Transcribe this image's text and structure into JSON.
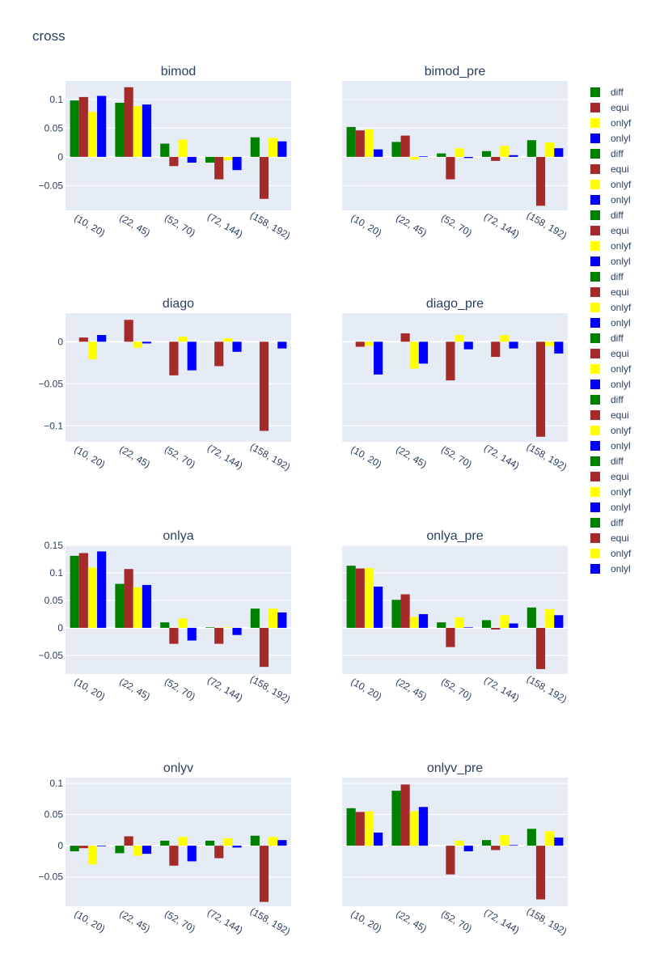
{
  "figure": {
    "title": "cross"
  },
  "colors": {
    "diff": "#008000",
    "equi": "#a52a2a",
    "onlyf": "#ffff00",
    "onlyl": "#0000ff",
    "plot_bg": "#e5ecf6",
    "text": "#2a3f5f"
  },
  "legend": {
    "entries": [
      {
        "name": "diff",
        "color": "#008000"
      },
      {
        "name": "equi",
        "color": "#a52a2a"
      },
      {
        "name": "onlyf",
        "color": "#ffff00"
      },
      {
        "name": "onlyl",
        "color": "#0000ff"
      },
      {
        "name": "diff",
        "color": "#008000"
      },
      {
        "name": "equi",
        "color": "#a52a2a"
      },
      {
        "name": "onlyf",
        "color": "#ffff00"
      },
      {
        "name": "onlyl",
        "color": "#0000ff"
      },
      {
        "name": "diff",
        "color": "#008000"
      },
      {
        "name": "equi",
        "color": "#a52a2a"
      },
      {
        "name": "onlyf",
        "color": "#ffff00"
      },
      {
        "name": "onlyl",
        "color": "#0000ff"
      },
      {
        "name": "diff",
        "color": "#008000"
      },
      {
        "name": "equi",
        "color": "#a52a2a"
      },
      {
        "name": "onlyf",
        "color": "#ffff00"
      },
      {
        "name": "onlyl",
        "color": "#0000ff"
      },
      {
        "name": "diff",
        "color": "#008000"
      },
      {
        "name": "equi",
        "color": "#a52a2a"
      },
      {
        "name": "onlyf",
        "color": "#ffff00"
      },
      {
        "name": "onlyl",
        "color": "#0000ff"
      },
      {
        "name": "diff",
        "color": "#008000"
      },
      {
        "name": "equi",
        "color": "#a52a2a"
      },
      {
        "name": "onlyf",
        "color": "#ffff00"
      },
      {
        "name": "onlyl",
        "color": "#0000ff"
      },
      {
        "name": "diff",
        "color": "#008000"
      },
      {
        "name": "equi",
        "color": "#a52a2a"
      },
      {
        "name": "onlyf",
        "color": "#ffff00"
      },
      {
        "name": "onlyl",
        "color": "#0000ff"
      },
      {
        "name": "diff",
        "color": "#008000"
      },
      {
        "name": "equi",
        "color": "#a52a2a"
      },
      {
        "name": "onlyf",
        "color": "#ffff00"
      },
      {
        "name": "onlyl",
        "color": "#0000ff"
      }
    ],
    "placement": "right"
  },
  "chart_data": [
    {
      "type": "bar",
      "title": "bimod",
      "categories": [
        "(10, 20)",
        "(22, 45)",
        "(52, 70)",
        "(72, 144)",
        "(158, 192)"
      ],
      "yticks": [
        -0.05,
        0,
        0.05,
        0.1
      ],
      "yticklabels": [
        "−0.05",
        "0",
        "0.05",
        "0.1"
      ],
      "ylim": [
        -0.093,
        0.132
      ],
      "series": [
        {
          "name": "diff",
          "values": [
            0.098,
            0.094,
            0.023,
            -0.01,
            0.034
          ]
        },
        {
          "name": "equi",
          "values": [
            0.104,
            0.121,
            -0.016,
            -0.039,
            -0.073
          ]
        },
        {
          "name": "onlyf",
          "values": [
            0.078,
            0.088,
            0.03,
            -0.006,
            0.033
          ]
        },
        {
          "name": "onlyl",
          "values": [
            0.106,
            0.091,
            -0.01,
            -0.023,
            0.027
          ]
        }
      ]
    },
    {
      "type": "bar",
      "title": "bimod_pre",
      "categories": [
        "(10, 20)",
        "(22, 45)",
        "(52, 70)",
        "(72, 144)",
        "(158, 192)"
      ],
      "yticks": [
        -0.05,
        0,
        0.05,
        0.1
      ],
      "yticklabels": [
        "",
        "",
        "",
        ""
      ],
      "ylim": [
        -0.093,
        0.132
      ],
      "series": [
        {
          "name": "diff",
          "values": [
            0.052,
            0.026,
            0.006,
            0.01,
            0.029
          ]
        },
        {
          "name": "equi",
          "values": [
            0.046,
            0.037,
            -0.039,
            -0.007,
            -0.085
          ]
        },
        {
          "name": "onlyf",
          "values": [
            0.048,
            -0.005,
            0.015,
            0.019,
            0.025
          ]
        },
        {
          "name": "onlyl",
          "values": [
            0.013,
            0.001,
            -0.002,
            0.003,
            0.015
          ]
        }
      ]
    },
    {
      "type": "bar",
      "title": "diago",
      "categories": [
        "(10, 20)",
        "(22, 45)",
        "(52, 70)",
        "(72, 144)",
        "(158, 192)"
      ],
      "yticks": [
        -0.1,
        -0.05,
        0
      ],
      "yticklabels": [
        "−0.1",
        "−0.05",
        "0"
      ],
      "ylim": [
        -0.119,
        0.034
      ],
      "series": [
        {
          "name": "diff",
          "values": [
            0,
            0,
            0,
            0,
            0
          ]
        },
        {
          "name": "equi",
          "values": [
            0.005,
            0.026,
            -0.04,
            -0.029,
            -0.106
          ]
        },
        {
          "name": "onlyf",
          "values": [
            -0.021,
            -0.007,
            0.006,
            0.004,
            0
          ]
        },
        {
          "name": "onlyl",
          "values": [
            0.008,
            -0.002,
            -0.034,
            -0.012,
            -0.008
          ]
        }
      ]
    },
    {
      "type": "bar",
      "title": "diago_pre",
      "categories": [
        "(10, 20)",
        "(22, 45)",
        "(52, 70)",
        "(72, 144)",
        "(158, 192)"
      ],
      "yticks": [
        -0.1,
        -0.05,
        0
      ],
      "yticklabels": [
        "",
        "",
        ""
      ],
      "ylim": [
        -0.119,
        0.034
      ],
      "series": [
        {
          "name": "diff",
          "values": [
            0,
            0,
            0,
            0,
            0
          ]
        },
        {
          "name": "equi",
          "values": [
            -0.006,
            0.01,
            -0.046,
            -0.018,
            -0.113
          ]
        },
        {
          "name": "onlyf",
          "values": [
            -0.005,
            -0.032,
            0.008,
            0.008,
            -0.005
          ]
        },
        {
          "name": "onlyl",
          "values": [
            -0.039,
            -0.026,
            -0.009,
            -0.008,
            -0.014
          ]
        }
      ]
    },
    {
      "type": "bar",
      "title": "onlya",
      "categories": [
        "(10, 20)",
        "(22, 45)",
        "(52, 70)",
        "(72, 144)",
        "(158, 192)"
      ],
      "yticks": [
        -0.05,
        0,
        0.05,
        0.1,
        0.15
      ],
      "yticklabels": [
        "−0.05",
        "0",
        "0.05",
        "0.1",
        "0.15"
      ],
      "ylim": [
        -0.084,
        0.15
      ],
      "series": [
        {
          "name": "diff",
          "values": [
            0.131,
            0.08,
            0.01,
            0.001,
            0.035
          ]
        },
        {
          "name": "equi",
          "values": [
            0.136,
            0.107,
            -0.029,
            -0.029,
            -0.071
          ]
        },
        {
          "name": "onlyf",
          "values": [
            0.11,
            0.074,
            0.017,
            0.001,
            0.035
          ]
        },
        {
          "name": "onlyl",
          "values": [
            0.139,
            0.078,
            -0.023,
            -0.013,
            0.028
          ]
        }
      ]
    },
    {
      "type": "bar",
      "title": "onlya_pre",
      "categories": [
        "(10, 20)",
        "(22, 45)",
        "(52, 70)",
        "(72, 144)",
        "(158, 192)"
      ],
      "yticks": [
        -0.05,
        0,
        0.05,
        0.1,
        0.15
      ],
      "yticklabels": [
        "",
        "",
        "",
        "",
        ""
      ],
      "ylim": [
        -0.084,
        0.15
      ],
      "series": [
        {
          "name": "diff",
          "values": [
            0.113,
            0.051,
            0.01,
            0.014,
            0.037
          ]
        },
        {
          "name": "equi",
          "values": [
            0.108,
            0.061,
            -0.035,
            -0.003,
            -0.075
          ]
        },
        {
          "name": "onlyf",
          "values": [
            0.109,
            0.02,
            0.019,
            0.023,
            0.034
          ]
        },
        {
          "name": "onlyl",
          "values": [
            0.075,
            0.025,
            0.001,
            0.008,
            0.023
          ]
        }
      ]
    },
    {
      "type": "bar",
      "title": "onlyv",
      "categories": [
        "(10, 20)",
        "(22, 45)",
        "(52, 70)",
        "(72, 144)",
        "(158, 192)"
      ],
      "yticks": [
        -0.05,
        0,
        0.05,
        0.1
      ],
      "yticklabels": [
        "−0.05",
        "0",
        "0.05",
        "0.1"
      ],
      "ylim": [
        -0.097,
        0.109
      ],
      "series": [
        {
          "name": "diff",
          "values": [
            -0.009,
            -0.012,
            0.008,
            0.008,
            0.016
          ]
        },
        {
          "name": "equi",
          "values": [
            -0.004,
            0.015,
            -0.032,
            -0.02,
            -0.09
          ]
        },
        {
          "name": "onlyf",
          "values": [
            -0.03,
            -0.016,
            0.014,
            0.012,
            0.014
          ]
        },
        {
          "name": "onlyl",
          "values": [
            -0.001,
            -0.013,
            -0.025,
            -0.003,
            0.009
          ]
        }
      ]
    },
    {
      "type": "bar",
      "title": "onlyv_pre",
      "categories": [
        "(10, 20)",
        "(22, 45)",
        "(52, 70)",
        "(72, 144)",
        "(158, 192)"
      ],
      "yticks": [
        -0.05,
        0,
        0.05,
        0.1
      ],
      "yticklabels": [
        "",
        "",
        "",
        ""
      ],
      "ylim": [
        -0.097,
        0.109
      ],
      "series": [
        {
          "name": "diff",
          "values": [
            0.06,
            0.088,
            0,
            0.009,
            0.027
          ]
        },
        {
          "name": "equi",
          "values": [
            0.054,
            0.098,
            -0.046,
            -0.007,
            -0.086
          ]
        },
        {
          "name": "onlyf",
          "values": [
            0.055,
            0.055,
            0.008,
            0.017,
            0.023
          ]
        },
        {
          "name": "onlyl",
          "values": [
            0.021,
            0.062,
            -0.009,
            0.001,
            0.013
          ]
        }
      ]
    }
  ]
}
